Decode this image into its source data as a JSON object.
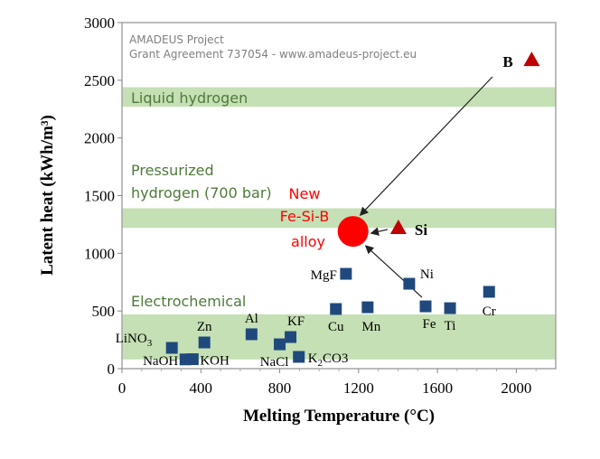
{
  "chart_data": {
    "type": "scatter",
    "xlabel": "Melting Temperature (°C)",
    "ylabel": "Latent heat (kWh/m³)",
    "xlim": [
      0,
      2200
    ],
    "ylim": [
      0,
      3000
    ],
    "xticks": [
      0,
      400,
      800,
      1200,
      1600,
      2000
    ],
    "yticks": [
      0,
      500,
      1000,
      1500,
      2000,
      2500,
      3000
    ],
    "grid": false,
    "watermark": [
      "AMADEUS Project",
      "Grant Agreement 737054 - www.amadeus-project.eu"
    ],
    "bands": [
      {
        "label": "Liquid hydrogen",
        "y": [
          2270,
          2440
        ],
        "label_lines": [
          "Liquid hydrogen"
        ]
      },
      {
        "label": "Pressurized hydrogen (700 bar)",
        "y": [
          1220,
          1390
        ],
        "label_lines": [
          "Pressurized",
          "hydrogen (700 bar)"
        ]
      },
      {
        "label": "Electrochemical",
        "y": [
          80,
          470
        ],
        "label_lines": [
          "Electrochemical"
        ]
      }
    ],
    "band_color": "#c5e0b4",
    "materials": [
      {
        "name": "LiNO3",
        "x": 253,
        "y": 180
      },
      {
        "name": "NaOH",
        "x": 322,
        "y": 80
      },
      {
        "name": "KOH",
        "x": 359,
        "y": 82
      },
      {
        "name": "Zn",
        "x": 418,
        "y": 227
      },
      {
        "name": "Al",
        "x": 657,
        "y": 298
      },
      {
        "name": "NaCl",
        "x": 800,
        "y": 211
      },
      {
        "name": "KF",
        "x": 855,
        "y": 274
      },
      {
        "name": "K2CO3",
        "x": 897,
        "y": 102
      },
      {
        "name": "Cu",
        "x": 1085,
        "y": 517
      },
      {
        "name": "MgF",
        "x": 1136,
        "y": 822
      },
      {
        "name": "Mn",
        "x": 1246,
        "y": 532
      },
      {
        "name": "Ni",
        "x": 1457,
        "y": 736
      },
      {
        "name": "Fe",
        "x": 1540,
        "y": 540
      },
      {
        "name": "Ti",
        "x": 1664,
        "y": 524
      },
      {
        "name": "Cr",
        "x": 1862,
        "y": 666
      }
    ],
    "material_color": "#1f497d",
    "elements": [
      {
        "name": "B",
        "x": 2078,
        "y": 2678
      },
      {
        "name": "Si",
        "x": 1402,
        "y": 1222
      }
    ],
    "element_color": "#c00000",
    "alloy": {
      "label_lines": [
        "New",
        "Fe-Si-B",
        "alloy"
      ],
      "x": 1172,
      "y": 1190,
      "color": "#ff0000"
    }
  }
}
